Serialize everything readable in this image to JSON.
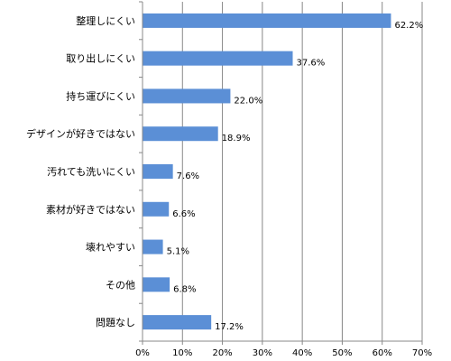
{
  "chart_data": {
    "type": "bar",
    "orientation": "horizontal",
    "categories": [
      "整理しにくい",
      "取り出しにくい",
      "持ち運びにくい",
      "デザインが好きではない",
      "汚れても洗いにくい",
      "素材が好きではない",
      "壊れやすい",
      "その他",
      "問題なし"
    ],
    "values": [
      62.2,
      37.6,
      22.0,
      18.9,
      7.6,
      6.6,
      5.1,
      6.8,
      17.2
    ],
    "value_labels": [
      "62.2%",
      "37.6%",
      "22.0%",
      "18.9%",
      "7.6%",
      "6.6%",
      "5.1%",
      "6.8%",
      "17.2%"
    ],
    "xlim": [
      0,
      70
    ],
    "x_ticks": [
      "0%",
      "10%",
      "20%",
      "30%",
      "40%",
      "50%",
      "60%",
      "70%"
    ],
    "grid": "vertical",
    "legend": "none",
    "bar_color": "#5b8fd6",
    "title": "",
    "xlabel": "",
    "ylabel": ""
  }
}
